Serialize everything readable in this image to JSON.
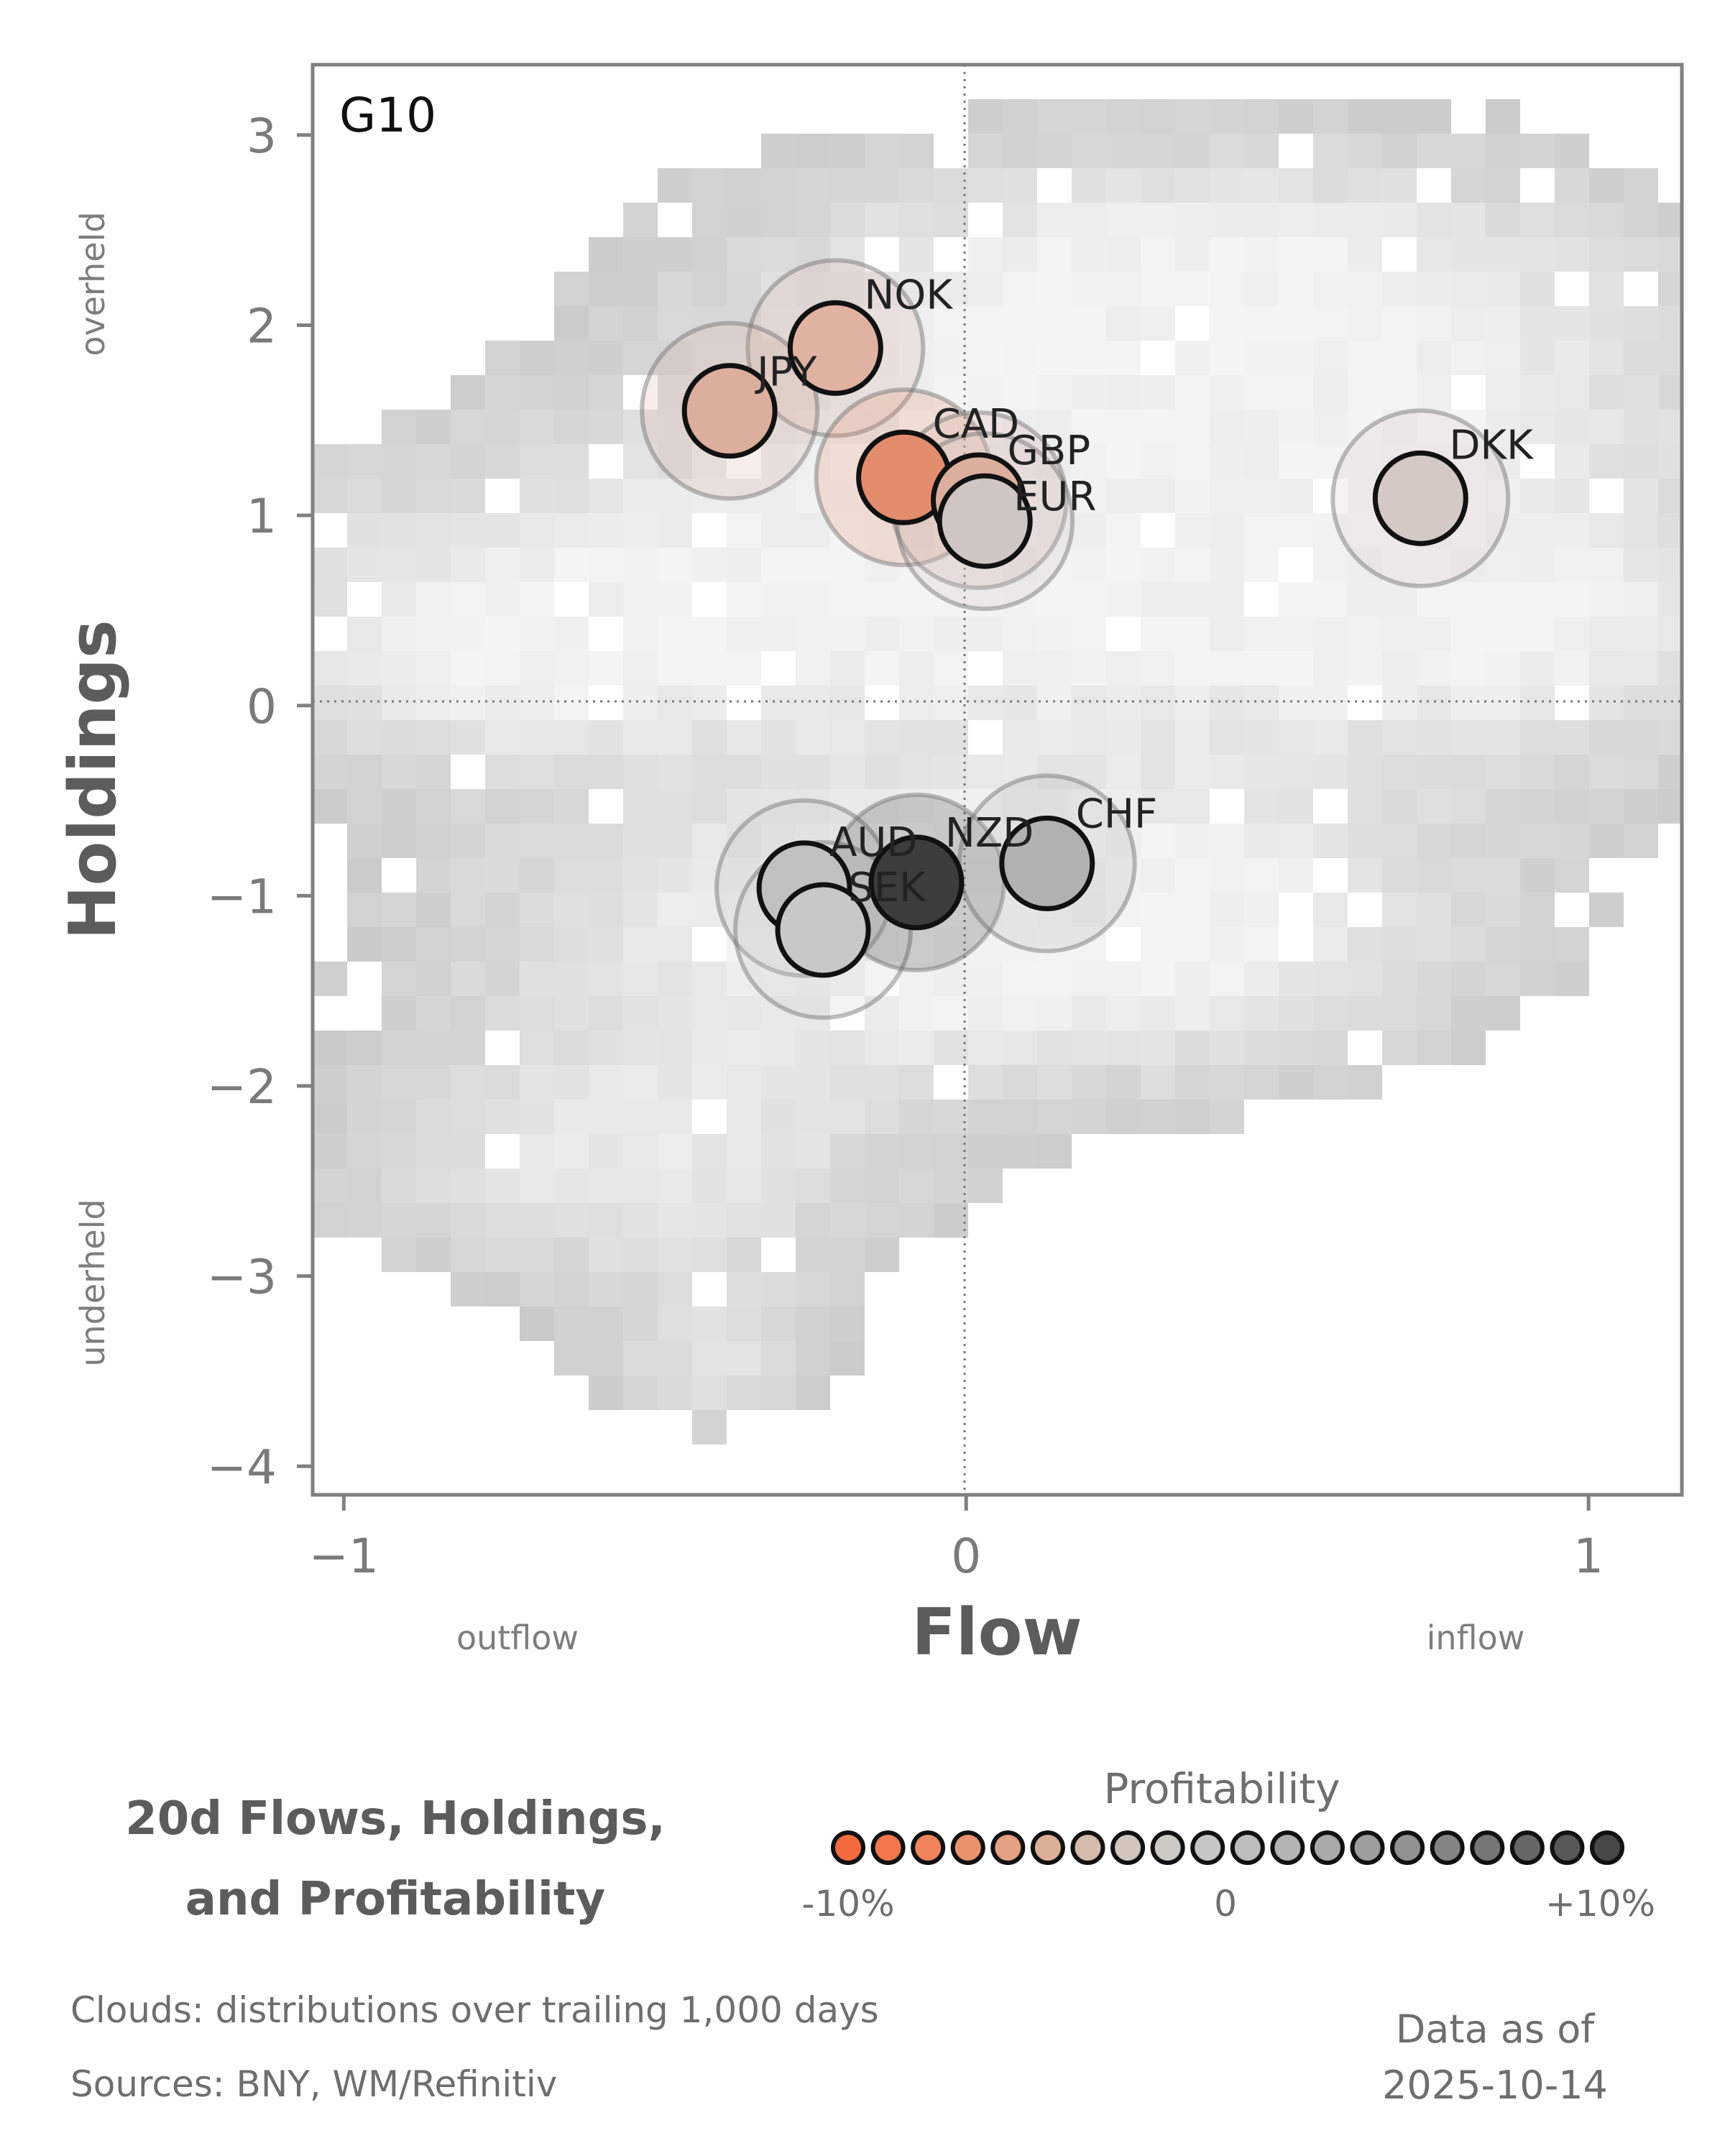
{
  "chart_data": {
    "type": "scatter",
    "panel_label": "G10",
    "xlabel": "Flow",
    "ylabel": "Holdings",
    "xlim": [
      -1.05,
      1.15
    ],
    "ylim": [
      -4.15,
      3.37
    ],
    "x_ticks": [
      -1,
      0,
      1
    ],
    "x_tick_labels": [
      "−1",
      "0",
      "1"
    ],
    "y_ticks": [
      3,
      2,
      1,
      0,
      -1,
      -2,
      -3,
      -4
    ],
    "y_tick_labels": [
      "3",
      "2",
      "1",
      "0",
      "−1",
      "−2",
      "−3",
      "−4"
    ],
    "reference_lines": {
      "x": 0,
      "y": 0,
      "style": "dotted"
    },
    "x_side_labels": {
      "negative": "outflow",
      "positive": "inflow"
    },
    "y_side_labels": {
      "positive": "overheld",
      "negative": "underheld"
    },
    "background": "2D histogram clouds of trailing 1,000-day distributions (grey)",
    "points": [
      {
        "label": "NOK",
        "flow": -0.21,
        "holdings": 1.88,
        "profitability": -4.0,
        "color": "#dfb2a2"
      },
      {
        "label": "JPY",
        "flow": -0.38,
        "holdings": 1.55,
        "profitability": -4.5,
        "color": "#dcae9e"
      },
      {
        "label": "CAD",
        "flow": -0.1,
        "holdings": 1.2,
        "profitability": -8.5,
        "color": "#e38c6e"
      },
      {
        "label": "GBP",
        "flow": 0.02,
        "holdings": 1.08,
        "profitability": -4.5,
        "color": "#dcae9e"
      },
      {
        "label": "EUR",
        "flow": 0.03,
        "holdings": 0.97,
        "profitability": -1.0,
        "color": "#cfc6c3"
      },
      {
        "label": "DKK",
        "flow": 0.73,
        "holdings": 1.09,
        "profitability": -1.5,
        "color": "#d4c9c4"
      },
      {
        "label": "AUD",
        "flow": -0.26,
        "holdings": -0.96,
        "profitability": 2.0,
        "color": "#c0c0c0"
      },
      {
        "label": "SEK",
        "flow": -0.23,
        "holdings": -1.18,
        "profitability": 1.0,
        "color": "#c8c8c8"
      },
      {
        "label": "NZD",
        "flow": -0.08,
        "holdings": -0.93,
        "profitability": 10.0,
        "color": "#3c3c3c"
      },
      {
        "label": "CHF",
        "flow": 0.13,
        "holdings": -0.83,
        "profitability": 4.0,
        "color": "#b0b2b2"
      }
    ],
    "legend": {
      "title": "Profitability",
      "tick_labels": [
        "-10%",
        "0",
        "+10%"
      ],
      "swatches": [
        "#f26a3d",
        "#f1774d",
        "#ef845d",
        "#ea926e",
        "#e3a083",
        "#dbaf98",
        "#d5bbab",
        "#d1c5bd",
        "#cdcac6",
        "#c6c6c6",
        "#bdbdbd",
        "#b3b3b3",
        "#a9a9a9",
        "#9d9d9d",
        "#919191",
        "#848484",
        "#767676",
        "#676767",
        "#585858",
        "#474747"
      ]
    }
  },
  "title": {
    "line1": "20d Flows, Holdings,",
    "line2": "and Profitability"
  },
  "footnotes": {
    "clouds": "Clouds:  distributions over trailing 1,000 days",
    "sources": "Sources:  BNY, WM/Refinitiv"
  },
  "as_of": {
    "label": "Data as of",
    "date": "2025-10-14"
  }
}
